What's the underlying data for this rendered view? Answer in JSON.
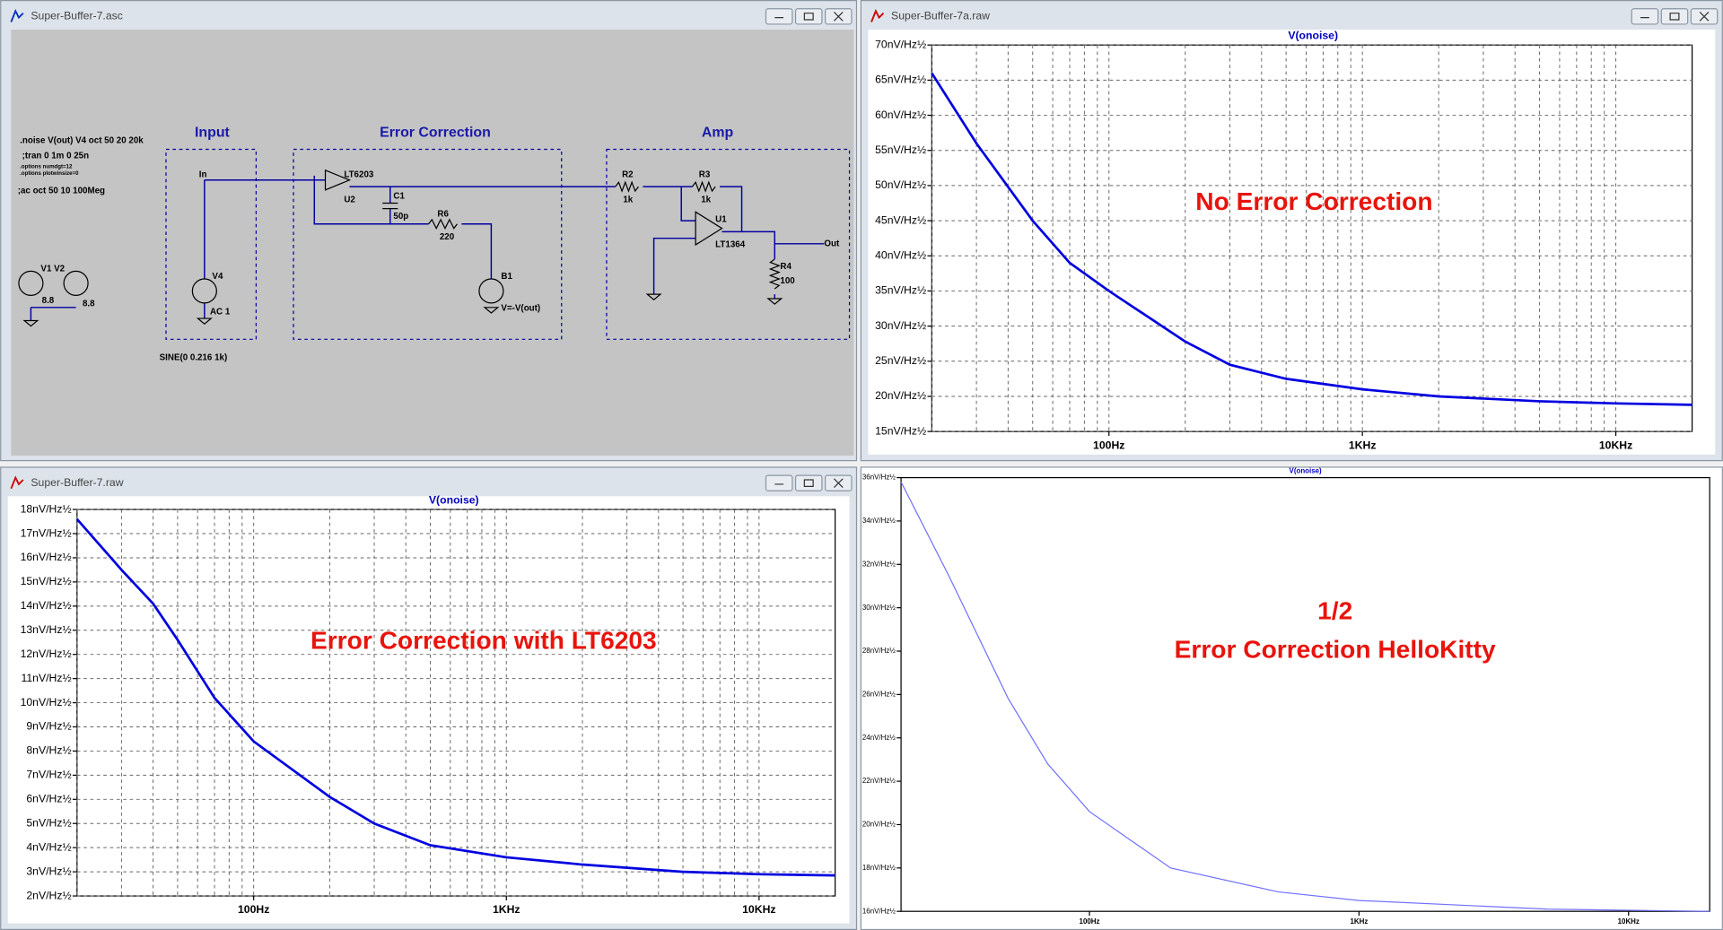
{
  "windows": [
    {
      "title": "Super-Buffer-7.asc"
    },
    {
      "title": "Super-Buffer-7a.raw"
    },
    {
      "title": "Super-Buffer-7.raw"
    }
  ],
  "schematic": {
    "labels": [
      ".noise V(out) V4 oct 50 20 20k",
      ";tran 0 1m 0 25n",
      ".options numdgt=12",
      ".options plotwinsize=0",
      ";ac oct 50 10 100Meg",
      "Input",
      "Error Correction",
      "Amp",
      "In",
      "V4",
      "AC 1",
      "SINE(0 0.216 1k)",
      "LT6203",
      "U2",
      "C1",
      "50p",
      "R6",
      "220",
      "B1",
      "V=-V(out)",
      "R2",
      "1k",
      "R3",
      "1k",
      "U1",
      "LT1364",
      "Out",
      "R4",
      "100",
      "V1 V2",
      "8.8",
      "8.8"
    ]
  },
  "chart_data": [
    {
      "type": "line",
      "title": "V(onoise)",
      "log_x": true,
      "grid": true,
      "x": [
        20,
        30,
        50,
        70,
        100,
        200,
        300,
        500,
        1000,
        2000,
        5000,
        10000,
        20000
      ],
      "series": [
        {
          "color": "#0000e0",
          "values": [
            66,
            56,
            45,
            39,
            35,
            27.8,
            24.5,
            22.5,
            21,
            20,
            19.3,
            19,
            18.8
          ]
        }
      ],
      "xlim": [
        20,
        20000
      ],
      "ylim": [
        15,
        70
      ],
      "xticks": [
        {
          "value": 100,
          "label": "100Hz"
        },
        {
          "value": 1000,
          "label": "1KHz"
        },
        {
          "value": 10000,
          "label": "10KHz"
        }
      ],
      "xgrid_minor": [
        20,
        30,
        40,
        50,
        60,
        70,
        80,
        90,
        200,
        300,
        400,
        500,
        600,
        700,
        800,
        900,
        2000,
        3000,
        4000,
        5000,
        6000,
        7000,
        8000,
        9000
      ],
      "yticks": [
        {
          "value": 15,
          "label": "15nV/Hz½"
        },
        {
          "value": 20,
          "label": "20nV/Hz½"
        },
        {
          "value": 25,
          "label": "25nV/Hz½"
        },
        {
          "value": 30,
          "label": "30nV/Hz½"
        },
        {
          "value": 35,
          "label": "35nV/Hz½"
        },
        {
          "value": 40,
          "label": "40nV/Hz½"
        },
        {
          "value": 45,
          "label": "45nV/Hz½"
        },
        {
          "value": 50,
          "label": "50nV/Hz½"
        },
        {
          "value": 55,
          "label": "55nV/Hz½"
        },
        {
          "value": 60,
          "label": "60nV/Hz½"
        },
        {
          "value": 65,
          "label": "65nV/Hz½"
        },
        {
          "value": 70,
          "label": "70nV/Hz½"
        }
      ],
      "annotations": [
        "No Error Correction"
      ]
    },
    {
      "type": "line",
      "title": "V(onoise)",
      "log_x": true,
      "grid": true,
      "x": [
        20,
        30,
        40,
        50,
        70,
        100,
        200,
        300,
        500,
        1000,
        2000,
        5000,
        10000,
        20000
      ],
      "series": [
        {
          "color": "#0000e0",
          "values": [
            17.6,
            15.5,
            14.1,
            12.6,
            10.2,
            8.4,
            6.1,
            5.0,
            4.1,
            3.6,
            3.3,
            3.0,
            2.9,
            2.85
          ]
        }
      ],
      "xlim": [
        20,
        20000
      ],
      "ylim": [
        2,
        18
      ],
      "xticks": [
        {
          "value": 100,
          "label": "100Hz"
        },
        {
          "value": 1000,
          "label": "1KHz"
        },
        {
          "value": 10000,
          "label": "10KHz"
        }
      ],
      "xgrid_minor": [
        20,
        30,
        40,
        50,
        60,
        70,
        80,
        90,
        200,
        300,
        400,
        500,
        600,
        700,
        800,
        900,
        2000,
        3000,
        4000,
        5000,
        6000,
        7000,
        8000,
        9000
      ],
      "yticks": [
        {
          "value": 2,
          "label": "2nV/Hz½"
        },
        {
          "value": 3,
          "label": "3nV/Hz½"
        },
        {
          "value": 4,
          "label": "4nV/Hz½"
        },
        {
          "value": 5,
          "label": "5nV/Hz½"
        },
        {
          "value": 6,
          "label": "6nV/Hz½"
        },
        {
          "value": 7,
          "label": "7nV/Hz½"
        },
        {
          "value": 8,
          "label": "8nV/Hz½"
        },
        {
          "value": 9,
          "label": "9nV/Hz½"
        },
        {
          "value": 10,
          "label": "10nV/Hz½"
        },
        {
          "value": 11,
          "label": "11nV/Hz½"
        },
        {
          "value": 12,
          "label": "12nV/Hz½"
        },
        {
          "value": 13,
          "label": "13nV/Hz½"
        },
        {
          "value": 14,
          "label": "14nV/Hz½"
        },
        {
          "value": 15,
          "label": "15nV/Hz½"
        },
        {
          "value": 16,
          "label": "16nV/Hz½"
        },
        {
          "value": 17,
          "label": "17nV/Hz½"
        },
        {
          "value": 18,
          "label": "18nV/Hz½"
        }
      ],
      "annotations": [
        "Error Correction with LT6203"
      ]
    },
    {
      "type": "line",
      "title": "V(onoise)",
      "log_x": true,
      "grid": false,
      "x": [
        20,
        30,
        50,
        70,
        100,
        200,
        500,
        1000,
        5000,
        20000
      ],
      "series": [
        {
          "color": "#7070ff",
          "values": [
            35.8,
            31.5,
            25.8,
            22.8,
            20.6,
            18.0,
            16.9,
            16.5,
            16.1,
            16.0
          ]
        }
      ],
      "xlim": [
        20,
        20000
      ],
      "ylim": [
        16,
        36
      ],
      "xticks": [
        {
          "value": 100,
          "label": "100Hz"
        },
        {
          "value": 1000,
          "label": "1KHz"
        },
        {
          "value": 10000,
          "label": "10KHz"
        }
      ],
      "yticks": [
        {
          "value": 16,
          "label": "16nV/Hz½"
        },
        {
          "value": 18,
          "label": "18nV/Hz½"
        },
        {
          "value": 20,
          "label": "20nV/Hz½"
        },
        {
          "value": 22,
          "label": "22nV/Hz½"
        },
        {
          "value": 24,
          "label": "24nV/Hz½"
        },
        {
          "value": 26,
          "label": "26nV/Hz½"
        },
        {
          "value": 28,
          "label": "28nV/Hz½"
        },
        {
          "value": 30,
          "label": "30nV/Hz½"
        },
        {
          "value": 32,
          "label": "32nV/Hz½"
        },
        {
          "value": 34,
          "label": "34nV/Hz½"
        },
        {
          "value": 36,
          "label": "36nV/Hz½"
        }
      ],
      "annotations": [
        "1/2",
        "Error Correction HelloKitty"
      ]
    }
  ]
}
